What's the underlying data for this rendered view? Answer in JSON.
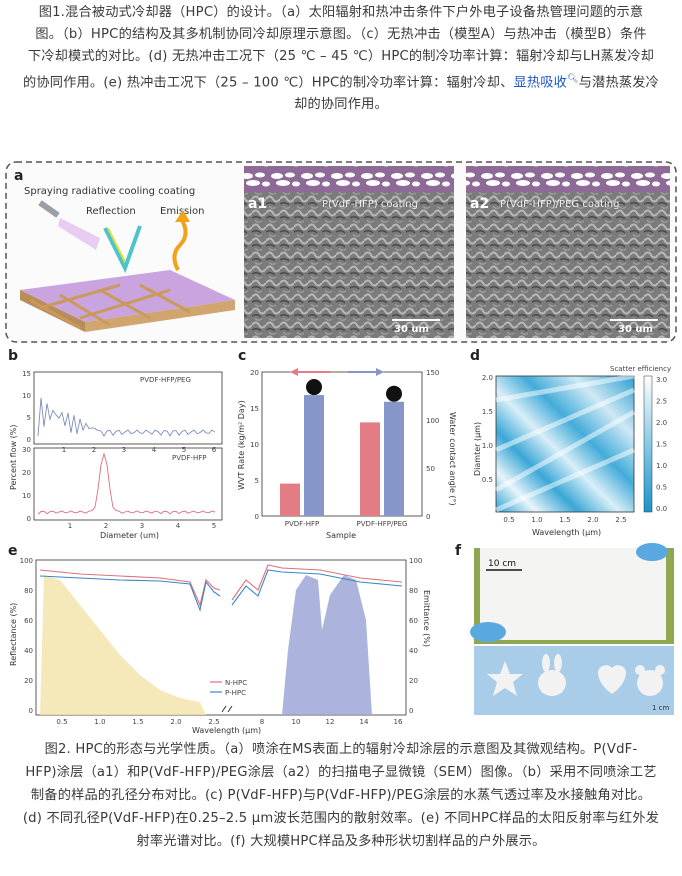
{
  "caption1": {
    "lines": [
      "图1.混合被动式冷却器（HPC）的设计。（a）太阳辐射和热冲击条件下户外电子设备热管理问题的示意",
      "图。（b）HPC的结构及其多机制协同冷却原理示意图。（c）无热冲击（模型A）与热冲击（模型B）条件",
      "下冷却模式的对比。(d) 无热冲击工况下（25 ℃ – 45 ℃）HPC的制冷功率计算：辐射冷却与LH蒸发冷却",
      "的协同作用。(e) 热冲击工况下（25 – 100 ℃）HPC的制冷功率计算：辐射冷却、"
    ],
    "link_text": "显热吸收",
    "line4_after": "与潜热蒸发冷",
    "line5": "却的协同作用。"
  },
  "panel_a": {
    "label": "a",
    "title": "Spraying radiative cooling coating",
    "reflection": "Reflection",
    "emission": "Emission",
    "a1_label": "a1",
    "a1_text": "P(VdF-HFP) coating",
    "a1_scale": "30 um",
    "a2_label": "a2",
    "a2_text": "P(VdF-HFP)/PEG coating",
    "a2_scale": "30 um"
  },
  "panel_b": {
    "label": "b",
    "ylabel": "Percent flow (%)",
    "xlabel": "Diameter (um)",
    "top": {
      "legend": "PVDF-HFP/PEG",
      "yticks": [
        "15",
        "10",
        "5",
        "0"
      ],
      "xticks": [
        "1",
        "2",
        "3",
        "4",
        "5",
        "6"
      ]
    },
    "bottom": {
      "legend": "PVDF-HFP",
      "yticks": [
        "30",
        "20",
        "10",
        "0"
      ],
      "xticks": [
        "1",
        "2",
        "3",
        "4",
        "5"
      ]
    }
  },
  "panel_c": {
    "label": "c",
    "ylabel": "WVT Rate (kg/m² Day)",
    "y2label": "Water contact angle (°)",
    "xlabel": "Sample",
    "yticks": [
      "0",
      "5",
      "10",
      "15",
      "20"
    ],
    "y2ticks": [
      "0",
      "50",
      "100",
      "150"
    ],
    "categories": [
      "PVDF-HFP",
      "PVDF-HFP/PEG"
    ]
  },
  "panel_d": {
    "label": "d",
    "colorbar_title": "Scatter efficiency",
    "ylabel": "Diamter (μm)",
    "xlabel": "Wavelength (μm)",
    "yticks": [
      "2.0",
      "1.5",
      "1.0",
      "0.5"
    ],
    "xticks": [
      "0.5",
      "1.0",
      "1.5",
      "2.0",
      "2.5"
    ],
    "cbticks": [
      "3.0",
      "2.5",
      "2.0",
      "1.5",
      "1.0",
      "0.5",
      "0.0"
    ]
  },
  "panel_e": {
    "label": "e",
    "ylabel": "Reflectance (%)",
    "y2label": "Emittance (%)",
    "xlabel": "Wavelength (μm)",
    "yticks": [
      "100",
      "80",
      "60",
      "40",
      "20",
      "0"
    ],
    "y2ticks": [
      "100",
      "80",
      "60",
      "40",
      "20",
      "0"
    ],
    "xticks_left": [
      "0.5",
      "1.0",
      "1.5",
      "2.0",
      "2.5"
    ],
    "xticks_right": [
      "8",
      "10",
      "12",
      "14",
      "16"
    ],
    "legend": [
      "N-HPC",
      "P-HPC"
    ]
  },
  "panel_f": {
    "label": "f",
    "scale": "10 cm",
    "scale2": "1 cm"
  },
  "chart_data": [
    {
      "type": "bar",
      "categories": [
        "PVDF-HFP",
        "PVDF-HFP/PEG"
      ],
      "series": [
        {
          "name": "WVT Rate",
          "values": [
            4.5,
            13.0
          ]
        },
        {
          "name": "Water contact angle",
          "values": [
            126,
            119
          ]
        }
      ],
      "ylabel": "WVT Rate (kg/m² Day)",
      "y2label": "Water contact angle (°)",
      "ylim": [
        0,
        20
      ],
      "y2lim": [
        0,
        150
      ]
    }
  ],
  "caption2": {
    "lines": [
      "图2. HPC的形态与光学性质。（a）喷涂在MS表面上的辐射冷却涂层的示意图及其微观结构。P(VdF-",
      "HFP)涂层（a1）和P(VdF-HFP)/PEG涂层（a2）的扫描电子显微镜（SEM）图像。（b）采用不同喷涂工艺",
      "制备的样品的孔径分布对比。(c) P(VdF-HFP)与P(VdF-HFP)/PEG涂层的水蒸气透过率及水接触角对比。",
      "(d) 不同孔径P(VdF-HFP)在0.25–2.5 μm波长范围内的散射效率。(e) 不同HPC样品的太阳反射率与红外发",
      "射率光谱对比。(f) 大规模HPC样品及多种形状切割样品的户外展示。"
    ]
  }
}
